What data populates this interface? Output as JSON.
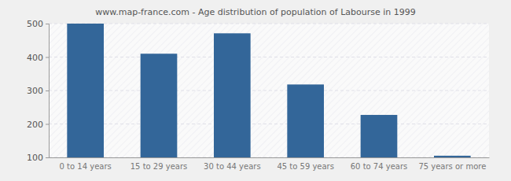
{
  "chart_data": {
    "type": "bar",
    "title": "www.map-france.com - Age distribution of population of Labourse in 1999",
    "categories": [
      "0 to 14 years",
      "15 to 29 years",
      "30 to 44 years",
      "45 to 59 years",
      "60 to 74 years",
      "75 years or more"
    ],
    "values": [
      500,
      410,
      471,
      318,
      227,
      105
    ],
    "color": "#336699",
    "ylim": [
      100,
      500
    ],
    "yticks": [
      100,
      200,
      300,
      400,
      500
    ],
    "grid": true
  }
}
